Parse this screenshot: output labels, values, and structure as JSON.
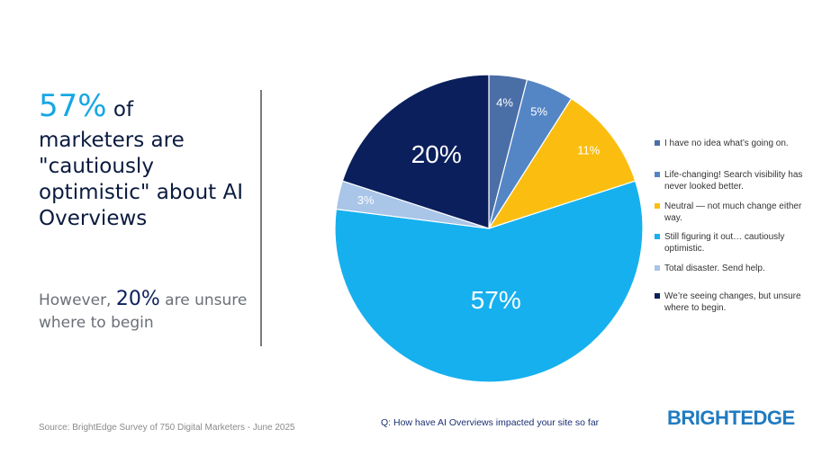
{
  "headline": {
    "big_pct": "57%",
    "of": " of",
    "rest": "marketers are \"cautiously optimistic\" about AI Overviews"
  },
  "subtext": {
    "before": "However, ",
    "pct": "20%",
    "after": " are unsure where to begin"
  },
  "chart_data": {
    "type": "pie",
    "title": "",
    "start_angle_deg": 0,
    "direction": "clockwise",
    "slices": [
      {
        "label": "I have no idea what’s going on.",
        "value": 4,
        "display": "4%",
        "color": "#4a6ea6"
      },
      {
        "label": "Life-changing! Search visibility has never looked better.",
        "value": 5,
        "display": "5%",
        "color": "#5486c6"
      },
      {
        "label": "Neutral — not much change either way.",
        "value": 11,
        "display": "11%",
        "color": "#fbbe10"
      },
      {
        "label": "Still figuring it out… cautiously optimistic.",
        "value": 57,
        "display": "57%",
        "color": "#16b0ee"
      },
      {
        "label": "Total disaster. Send help.",
        "value": 3,
        "display": "3%",
        "color": "#a9c5e8"
      },
      {
        "label": "We’re seeing changes, but unsure where to begin.",
        "value": 20,
        "display": "20%",
        "color": "#0b1f5c"
      }
    ],
    "legend_position": "right"
  },
  "legend_lines": [
    [
      "I have no idea what’s going on."
    ],
    [
      "Life-changing! Search visibility has",
      "never looked better."
    ],
    [
      "Neutral — not much change either",
      "way."
    ],
    [
      "Still figuring it out… cautiously",
      "optimistic."
    ],
    [
      "Total disaster. Send help."
    ],
    [
      "We’re seeing changes, but unsure",
      "where to begin."
    ]
  ],
  "footer": {
    "source": "Source: BrightEdge Survey of 750 Digital Marketers - June 2025",
    "question": "Q: How have AI Overviews impacted your site so far",
    "brand": "BRIGHTEDGE"
  }
}
